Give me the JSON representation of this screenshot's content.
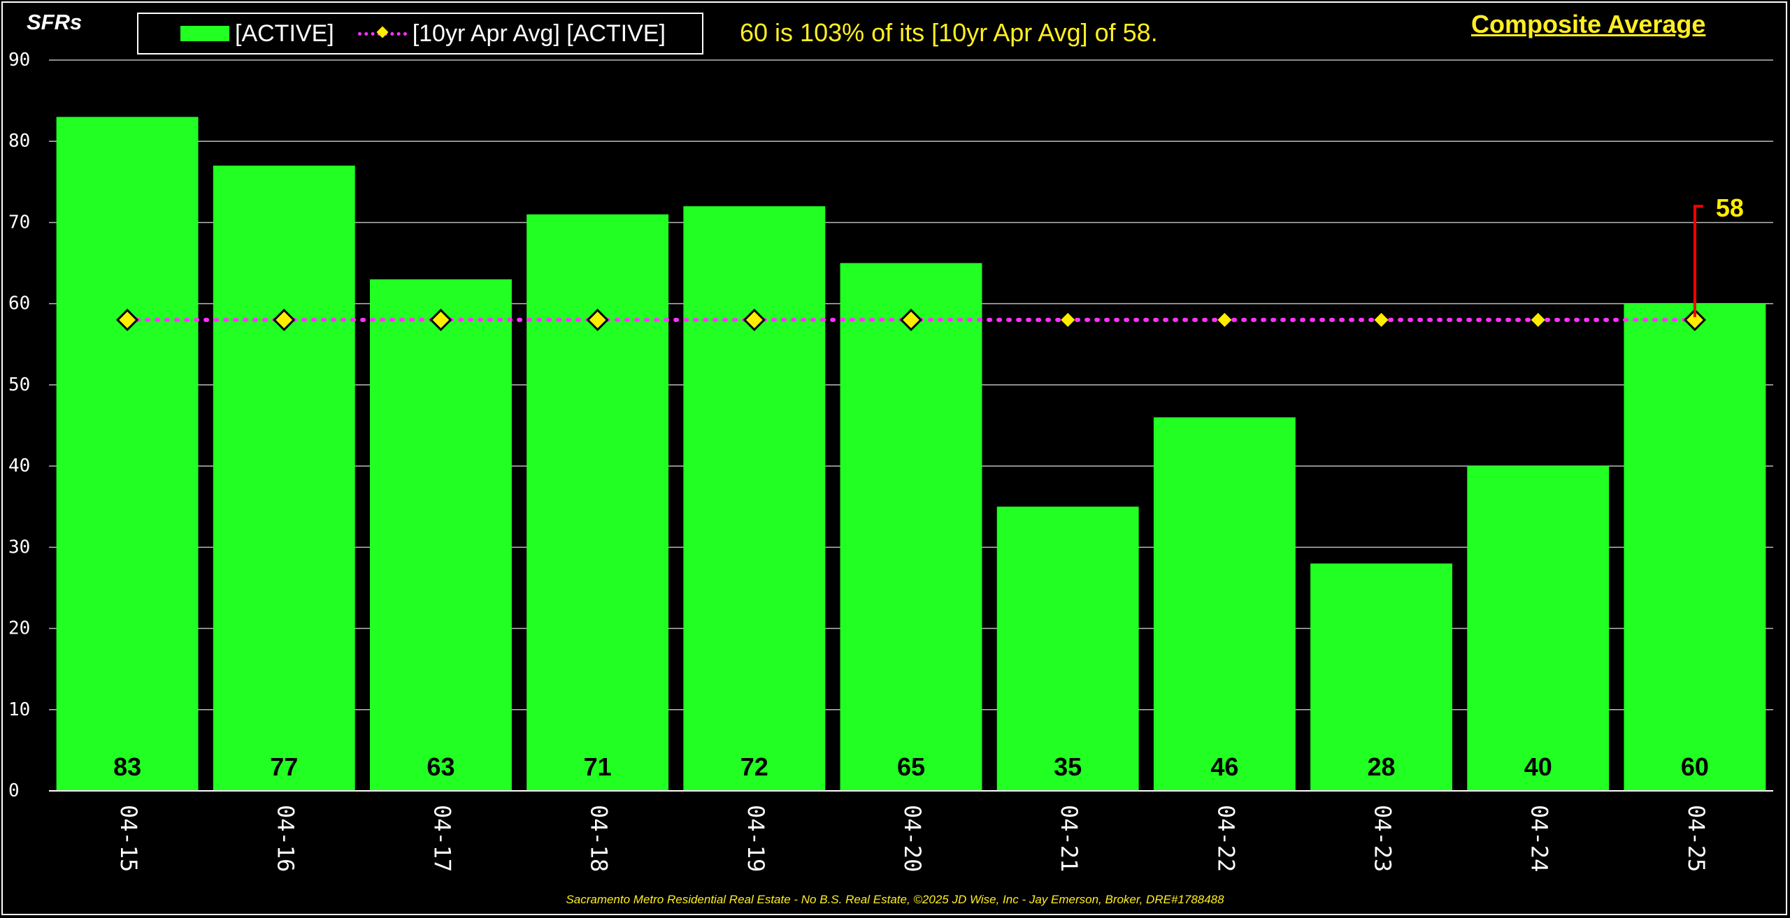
{
  "chart_data": {
    "type": "bar",
    "ylabel": "SFRs",
    "ylim": [
      0,
      90
    ],
    "yticks": [
      0,
      10,
      20,
      30,
      40,
      50,
      60,
      70,
      80,
      90
    ],
    "grid": true,
    "categories": [
      "04-15",
      "04-16",
      "04-17",
      "04-18",
      "04-19",
      "04-20",
      "04-21",
      "04-22",
      "04-23",
      "04-24",
      "04-25"
    ],
    "series": [
      {
        "name": "[ACTIVE]",
        "type": "bar",
        "values": [
          83,
          77,
          63,
          71,
          72,
          65,
          35,
          46,
          28,
          40,
          60
        ],
        "color": "#22ff22"
      },
      {
        "name": "[10yr Apr Avg] [ACTIVE]",
        "type": "line",
        "values": [
          58,
          58,
          58,
          58,
          58,
          58,
          58,
          58,
          58,
          58,
          58
        ],
        "color": "#ff33ff",
        "marker_color": "#ffee00"
      }
    ],
    "annotation": {
      "text": "58",
      "color": "#ff0000",
      "label_color": "#ffee00"
    },
    "note": "60 is 103% of its [10yr Apr Avg] of 58.",
    "legend_position": "top-left"
  },
  "header": {
    "composite": "Composite Average"
  },
  "footer": {
    "credit": "Sacramento Metro Residential Real Estate - No B.S. Real Estate, ©2025 JD Wise, Inc - Jay Emerson, Broker, DRE#1788488"
  },
  "colors": {
    "background": "#000000",
    "text": "#ffffff",
    "accent": "#ffee22"
  }
}
